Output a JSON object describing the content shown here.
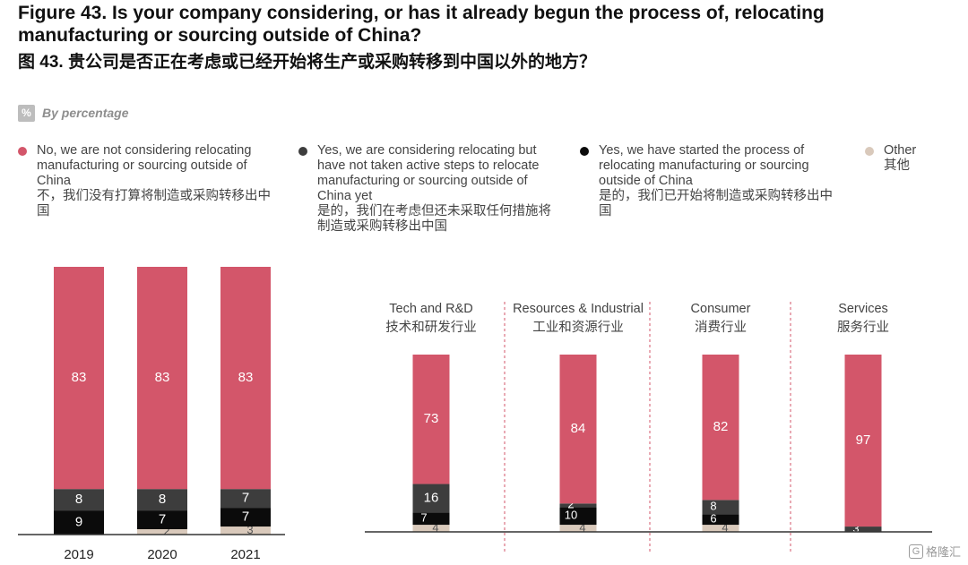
{
  "title_en": "Figure 43. Is your company considering, or has it already begun the process of, relocating manufacturing or sourcing outside of China?",
  "title_cn": "图 43. 贵公司是否正在考虑或已经开始将生产或采购转移到中国以外的地方？",
  "unit": {
    "badge": "%",
    "text": "By percentage"
  },
  "legend": [
    {
      "en": "No, we are not considering relocating manufacturing or sourcing outside of China",
      "cn": "不，我们没有打算将制造或采购转移出中国",
      "color": "#d3566a"
    },
    {
      "en": "Yes, we are considering relocating but have not taken active steps to relocate manufacturing or sourcing outside of China yet",
      "cn": "是的，我们在考虑但还未采取任何措施将制造或采购转移出中国",
      "color": "#3d3d3d"
    },
    {
      "en": "Yes, we have started the process of relocating manufacturing or sourcing outside of China",
      "cn": "是的，我们已开始将制造或采购转移出中国",
      "color": "#0b0b0b"
    },
    {
      "en": "Other",
      "cn": "其他",
      "color": "#d9c9bb"
    }
  ],
  "chart_data": [
    {
      "type": "bar",
      "stacked": true,
      "categories": [
        "2019",
        "2020",
        "2021"
      ],
      "series": [
        {
          "name": "Other",
          "values": [
            0,
            2,
            3
          ]
        },
        {
          "name": "Yes, we have started the process of relocating manufacturing or sourcing outside of China",
          "values": [
            9,
            7,
            7
          ]
        },
        {
          "name": "Yes, we are considering relocating but have not taken active steps to relocate manufacturing or sourcing outside of China yet",
          "values": [
            8,
            8,
            7
          ]
        },
        {
          "name": "No, we are not considering relocating manufacturing or sourcing outside of China",
          "values": [
            83,
            83,
            83
          ]
        }
      ],
      "ylim": [
        0,
        100
      ]
    },
    {
      "type": "bar",
      "stacked": true,
      "categories": [
        "Tech and R&D",
        "Resources & Industrial",
        "Consumer",
        "Services"
      ],
      "categories_cn": [
        "技术和研发行业",
        "工业和资源行业",
        "消费行业",
        "服务行业"
      ],
      "series": [
        {
          "name": "Other",
          "values": [
            4,
            4,
            4,
            0
          ]
        },
        {
          "name": "Yes, we have started the process of relocating manufacturing or sourcing outside of China",
          "values": [
            7,
            10,
            6,
            0
          ]
        },
        {
          "name": "Yes, we are considering relocating but have not taken active steps to relocate manufacturing or sourcing outside of China yet",
          "values": [
            16,
            2,
            8,
            3
          ]
        },
        {
          "name": "No, we are not considering relocating manufacturing or sourcing outside of China",
          "values": [
            73,
            84,
            82,
            97
          ]
        }
      ],
      "ylim": [
        0,
        100
      ]
    }
  ],
  "watermark": "格隆汇"
}
